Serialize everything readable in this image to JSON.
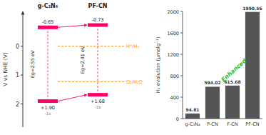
{
  "chart_data": [
    {
      "type": "band_diagram",
      "ylabel": "V vs NHE (V)",
      "categories": [
        "g-C₃N₄",
        "PF-CN"
      ],
      "cb": [
        -0.65,
        -0.73
      ],
      "vb": [
        1.9,
        1.68
      ],
      "vb_labels": [
        "+1.90",
        "+1.68"
      ],
      "vb_tags": [
        "-1s",
        "-1b"
      ],
      "bandgap": [
        2.55,
        2.41
      ],
      "bandgap_labels": [
        "Eg=2.55 eV",
        "Eg=2.41 eV"
      ],
      "color": "#ff0066",
      "reference_lines": [
        {
          "value": 0,
          "label": "H⁺/H₂",
          "color": "#ff8800"
        },
        {
          "value": 1.23,
          "label": "O₂/H₂O",
          "color": "#ff8800"
        }
      ],
      "ylim": [
        2.8,
        -1.2
      ],
      "yticks": [
        0,
        1,
        2
      ]
    },
    {
      "type": "bar",
      "ylabel": "H₂ evolution (μmolg⁻¹)",
      "categories": [
        "g-C₃N₄",
        "P-CN",
        "F-CN",
        "PF-CN"
      ],
      "values": [
        94.81,
        594.02,
        615.68,
        1990.56
      ],
      "color": "#555555",
      "ylim": [
        0,
        2000
      ],
      "yticks": [
        0,
        400,
        800,
        1200,
        1600,
        2000
      ],
      "data_labels": true,
      "annotations": [
        {
          "text": "Enhanced",
          "color": "#22bb22"
        }
      ]
    }
  ]
}
